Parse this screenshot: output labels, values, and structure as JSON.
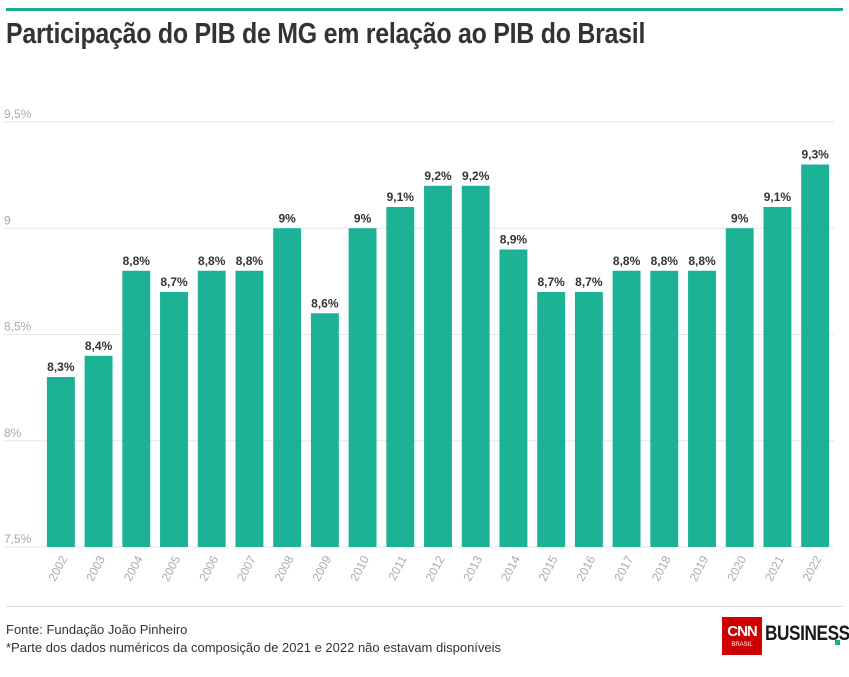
{
  "title": "Participação do PIB de MG em relação ao PIB do Brasil",
  "footer": {
    "source": "Fonte: Fundação João Pinheiro",
    "note": "*Parte dos dados numéricos da composição de 2021 e 2022 não estavam disponíveis"
  },
  "logo": {
    "brand": "CNN",
    "sub": "BRASIL",
    "word": "BUSINESS"
  },
  "colors": {
    "bar": "#1cb295",
    "accent": "#1aa98f",
    "grid": "#e6e6e6",
    "tick_text": "#aaaaaa",
    "label_text": "#333333"
  },
  "chart_data": {
    "type": "bar",
    "title": "Participação do PIB de MG em relação ao PIB do Brasil",
    "xlabel": "",
    "ylabel": "",
    "categories": [
      "2002",
      "2003",
      "2004",
      "2005",
      "2006",
      "2007",
      "2008",
      "2009",
      "2010",
      "2011",
      "2012",
      "2013",
      "2014",
      "2015",
      "2016",
      "2017",
      "2018",
      "2019",
      "2020",
      "2021",
      "2022"
    ],
    "values": [
      8.3,
      8.4,
      8.8,
      8.7,
      8.8,
      8.8,
      9.0,
      8.6,
      9.0,
      9.1,
      9.2,
      9.2,
      8.9,
      8.7,
      8.7,
      8.8,
      8.8,
      8.8,
      9.0,
      9.1,
      9.3
    ],
    "data_labels": [
      "8,3%",
      "8,4%",
      "8,8%",
      "8,7%",
      "8,8%",
      "8,8%",
      "9%",
      "8,6%",
      "9%",
      "9,1%",
      "9,2%",
      "9,2%",
      "8,9%",
      "8,7%",
      "8,7%",
      "8,8%",
      "8,8%",
      "8,8%",
      "9%",
      "9,1%",
      "9,3%"
    ],
    "yticks": [
      7.5,
      8,
      8.5,
      9,
      9.5
    ],
    "ytick_labels": [
      "7,5%",
      "8%",
      "8,5%",
      "9",
      "9,5%"
    ],
    "ylim": [
      7.5,
      9.7
    ],
    "grid": true,
    "legend": "none"
  }
}
